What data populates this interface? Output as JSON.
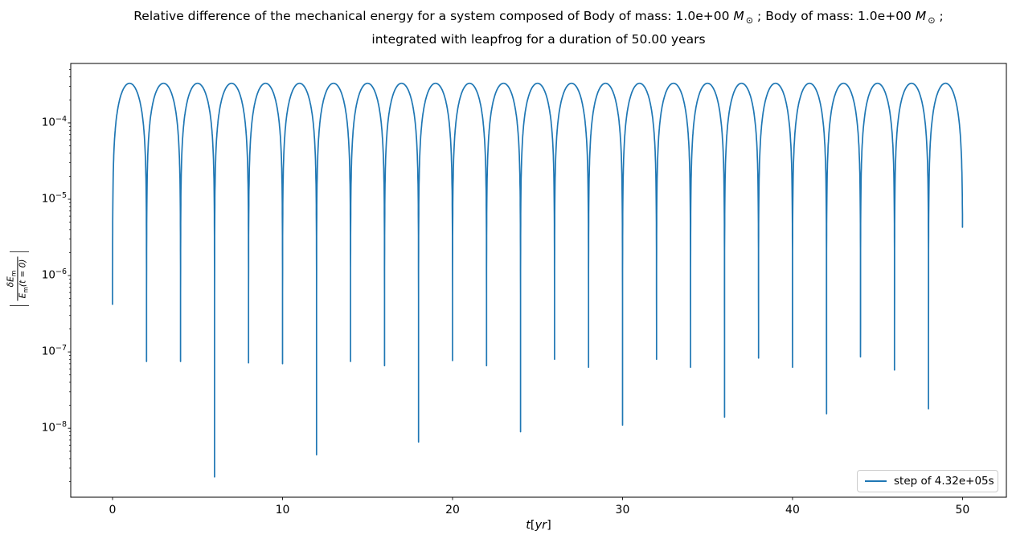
{
  "title": {
    "line1_segments": [
      {
        "type": "text",
        "value": "Relative difference of the mechanical energy for a system composed of Body of mass: 1.0e+00 "
      },
      {
        "type": "msun"
      },
      {
        "type": "text",
        "value": " ; Body of mass: 1.0e+00 "
      },
      {
        "type": "msun"
      },
      {
        "type": "text",
        "value": " ;"
      }
    ],
    "msun": {
      "letter": "M",
      "subscript": "⊙"
    },
    "line2": "integrated with leapfrog for a duration of 50.00 years"
  },
  "axes": {
    "xlabel": {
      "var": "t",
      "bracket_open": "[",
      "unit": "yr",
      "bracket_close": "]"
    },
    "ylabel": {
      "open_bar": "|",
      "numerator": {
        "delta": "δ",
        "symbol": "E",
        "subscript": "m"
      },
      "denominator": {
        "symbol": "E",
        "subscript": "m",
        "args": "(t = 0)"
      },
      "close_bar": "|"
    },
    "x_tick_labels": [
      "0",
      "10",
      "20",
      "30",
      "40",
      "50"
    ],
    "y_tick_labels": [
      {
        "base": "10",
        "exponent": "−4"
      },
      {
        "base": "10",
        "exponent": "−5"
      },
      {
        "base": "10",
        "exponent": "−6"
      },
      {
        "base": "10",
        "exponent": "−7"
      },
      {
        "base": "10",
        "exponent": "−8"
      }
    ]
  },
  "legend": {
    "label": "step of 4.32e+05s",
    "line_color": "#1f77b4"
  },
  "chart_data": {
    "type": "line",
    "title": "Relative difference of the mechanical energy for a system composed of Body of mass: 1.0e+00 M⊙ ; Body of mass: 1.0e+00 M⊙ ; integrated with leapfrog for a duration of 50.00 years",
    "xlabel": "t[yr]",
    "ylabel": "|δE_m/E_m(t=0)|",
    "xscale": "linear",
    "yscale": "log",
    "xlim": [
      -2.46,
      52.58
    ],
    "ylim": [
      1.25e-09,
      0.0006
    ],
    "xticks": [
      0,
      10,
      20,
      30,
      40,
      50
    ],
    "yticks": [
      0.0001,
      1e-05,
      1e-06,
      1e-07,
      1e-08
    ],
    "grid": false,
    "legend_position": "lower right",
    "series": [
      {
        "name": "step of 4.32e+05s",
        "color": "#1f77b4",
        "line_width": 1.5,
        "model": {
          "type": "abs-sine-with-log-floor",
          "formula": "v(t) = peak_value*|sin(pi*(t - t_start)/period_years)| + floor(t), floor log-interpolated between successive minima",
          "peak_value": 0.00033,
          "period_years": 2,
          "n_peaks": 25,
          "peak_times_years": "1,3,5,...,49",
          "t_start": 0,
          "t_end": 50,
          "minima": [
            {
              "t": 0,
              "v": 4.2e-07
            },
            {
              "t": 2,
              "v": 7.5e-08
            },
            {
              "t": 4,
              "v": 7.5e-08
            },
            {
              "t": 6,
              "v": 2.3e-09
            },
            {
              "t": 8,
              "v": 7.2e-08
            },
            {
              "t": 10,
              "v": 7e-08
            },
            {
              "t": 12,
              "v": 4.5e-09
            },
            {
              "t": 14,
              "v": 7.5e-08
            },
            {
              "t": 16,
              "v": 6.6e-08
            },
            {
              "t": 18,
              "v": 6.6e-09
            },
            {
              "t": 20,
              "v": 7.7e-08
            },
            {
              "t": 22,
              "v": 6.6e-08
            },
            {
              "t": 24,
              "v": 9e-09
            },
            {
              "t": 26,
              "v": 8e-08
            },
            {
              "t": 28,
              "v": 6.3e-08
            },
            {
              "t": 30,
              "v": 1.1e-08
            },
            {
              "t": 32,
              "v": 8e-08
            },
            {
              "t": 34,
              "v": 6.3e-08
            },
            {
              "t": 36,
              "v": 1.4e-08
            },
            {
              "t": 38,
              "v": 8.3e-08
            },
            {
              "t": 40,
              "v": 6.3e-08
            },
            {
              "t": 42,
              "v": 1.55e-08
            },
            {
              "t": 44,
              "v": 8.6e-08
            },
            {
              "t": 46,
              "v": 5.8e-08
            },
            {
              "t": 48,
              "v": 1.8e-08
            },
            {
              "t": 50,
              "v": 4.3e-06
            }
          ]
        }
      }
    ]
  }
}
